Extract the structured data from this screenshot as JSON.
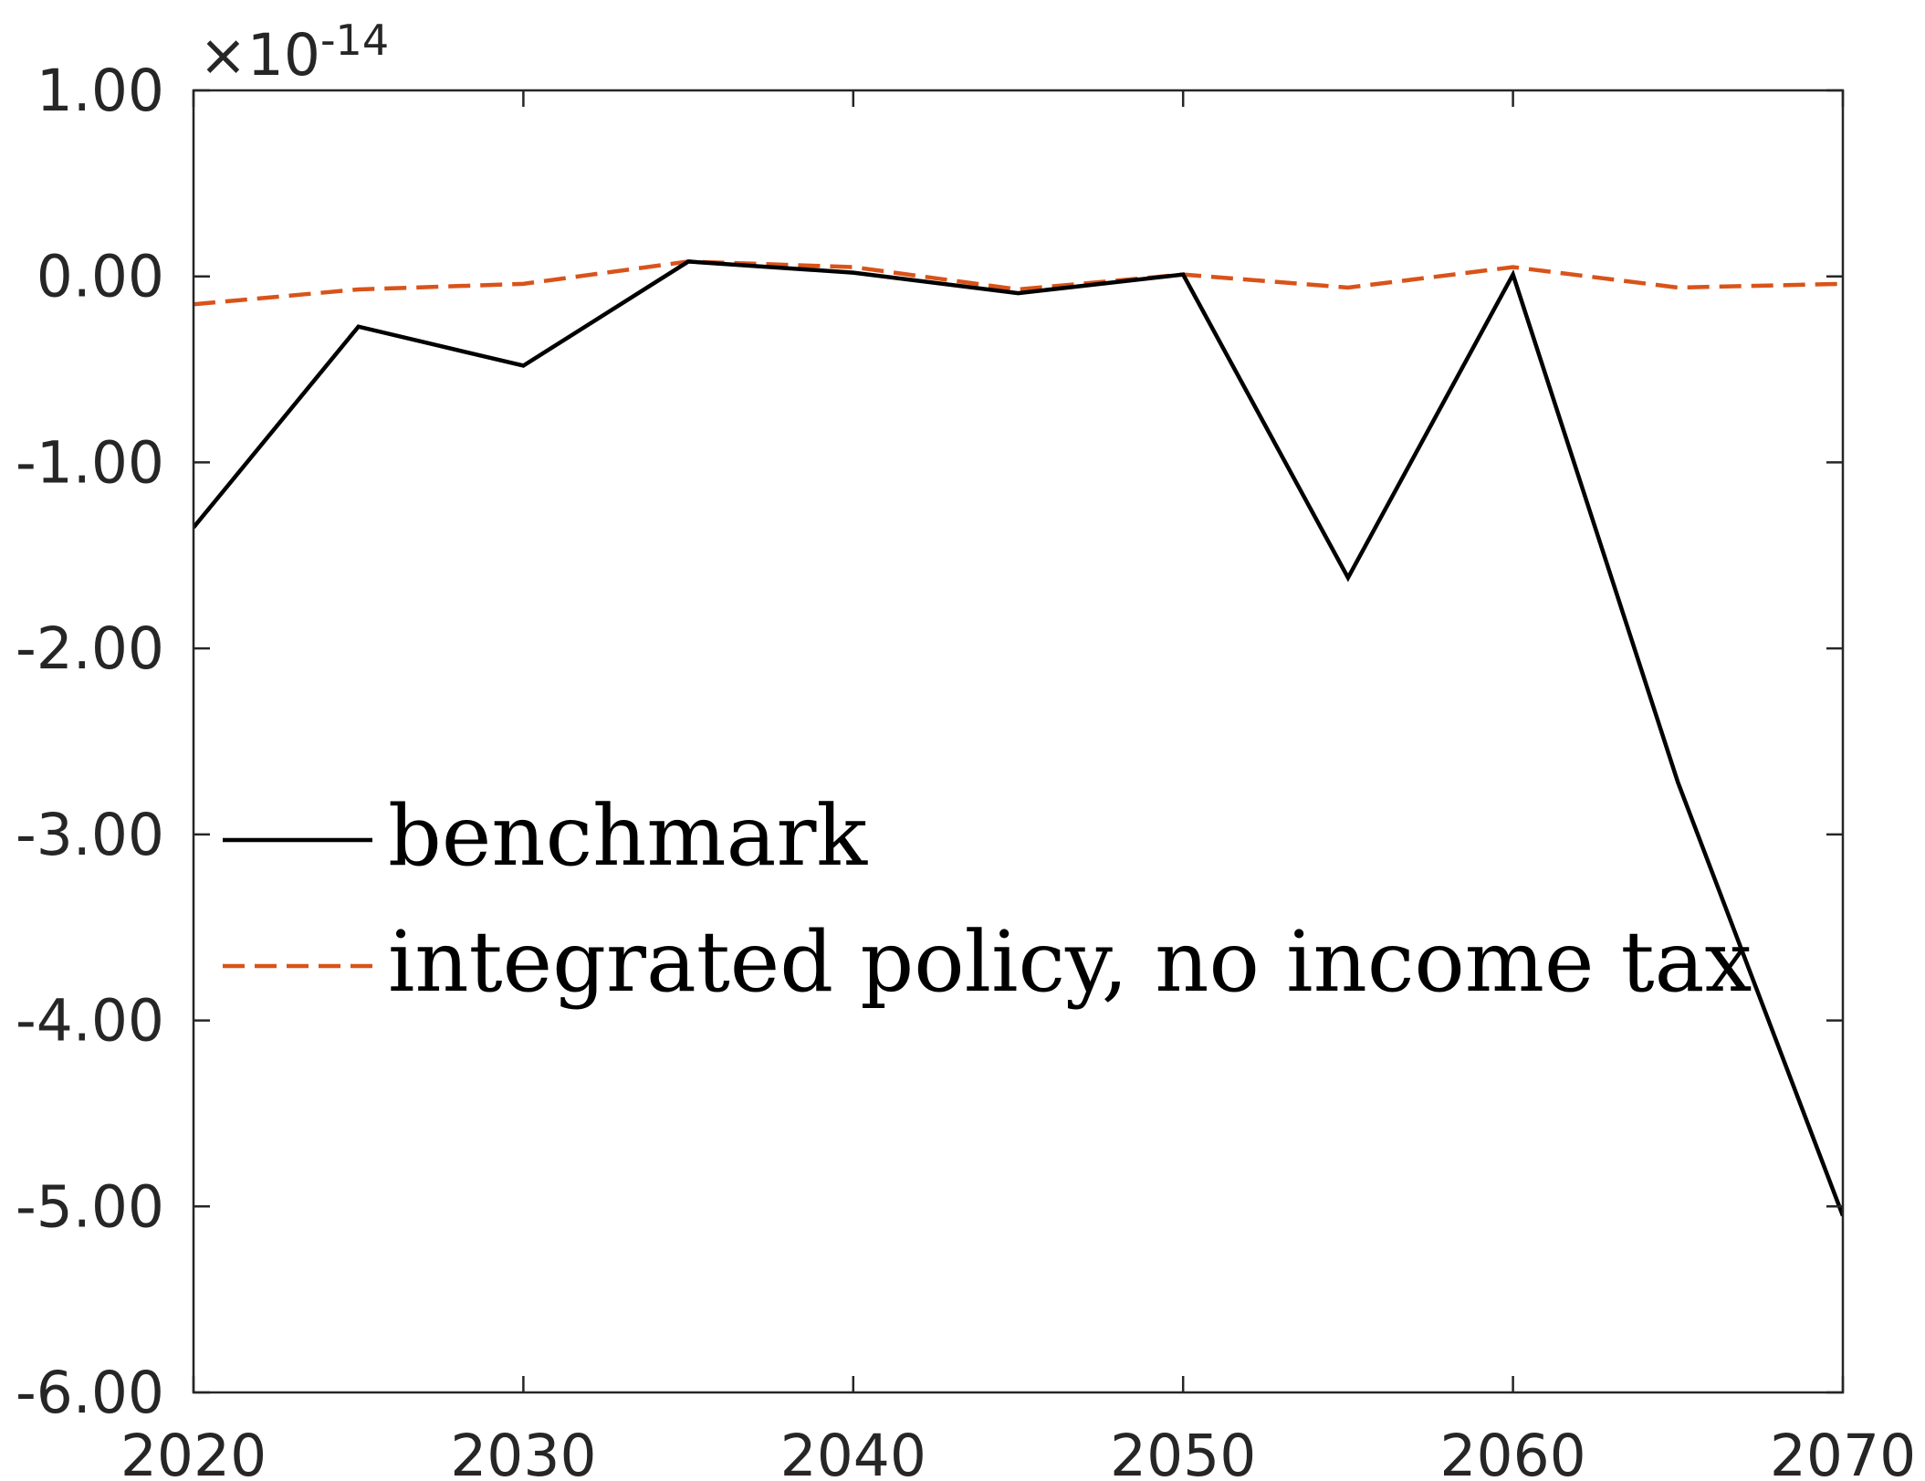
{
  "chart_data": {
    "type": "line",
    "title": "",
    "xlabel": "",
    "ylabel": "",
    "y_exponent_label": "×10",
    "y_exponent_power": "-14",
    "xlim": [
      2020,
      2070
    ],
    "ylim": [
      -6.0,
      1.0
    ],
    "x_ticks": [
      2020,
      2030,
      2040,
      2050,
      2060,
      2070
    ],
    "x_tick_labels": [
      "2020",
      "2030",
      "2040",
      "2050",
      "2060",
      "2070"
    ],
    "y_ticks": [
      1.0,
      0.0,
      -1.0,
      -2.0,
      -3.0,
      -4.0,
      -5.0,
      -6.0
    ],
    "y_tick_labels": [
      "1.00",
      "0.00",
      "-1.00",
      "-2.00",
      "-3.00",
      "-4.00",
      "-5.00",
      "-6.00"
    ],
    "grid": false,
    "legend_position": "center-left",
    "x": [
      2020,
      2025,
      2030,
      2035,
      2040,
      2045,
      2050,
      2055,
      2060,
      2065,
      2070
    ],
    "series": [
      {
        "name": "benchmark",
        "color": "#000000",
        "style": "solid",
        "values": [
          -1.35,
          -0.27,
          -0.48,
          0.08,
          0.02,
          -0.09,
          0.01,
          -1.62,
          0.01,
          -2.72,
          -5.05
        ]
      },
      {
        "name": "integrated policy, no income tax",
        "color": "#D95319",
        "style": "dashed",
        "values": [
          -0.15,
          -0.07,
          -0.04,
          0.08,
          0.05,
          -0.07,
          0.01,
          -0.06,
          0.05,
          -0.06,
          -0.04
        ]
      }
    ]
  }
}
